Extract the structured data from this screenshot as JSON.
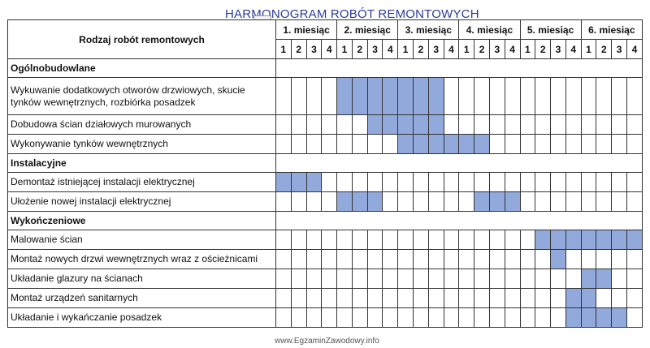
{
  "title": "HARMONOGRAM ROBÓT REMONTOWYCH",
  "info_badge": "INFO",
  "header": {
    "task_col": "Rodzaj robót remontowych",
    "months": [
      "1. miesiąc",
      "2. miesiąc",
      "3. miesiąc",
      "4. miesiąc",
      "5. miesiąc",
      "6. miesiąc"
    ],
    "weeks": [
      "1",
      "2",
      "3",
      "4"
    ]
  },
  "highlight_color": "#92a9dc",
  "sections": [
    {
      "name": "Ogólnobudowlane",
      "tasks": [
        {
          "label_lines": [
            "Wykuwanie dodatkowych otworów drzwiowych, skucie",
            "tynków wewnętrznych, rozbiórka posadzek"
          ],
          "weeks": [
            4,
            5,
            6,
            7,
            8,
            9,
            10
          ]
        },
        {
          "label_lines": [
            "Dobudowa ścian działowych murowanych"
          ],
          "weeks": [
            6,
            7,
            8,
            9,
            10
          ]
        },
        {
          "label_lines": [
            "Wykonywanie tynków wewnętrznych"
          ],
          "weeks": [
            8,
            9,
            10,
            11,
            12,
            13
          ]
        }
      ]
    },
    {
      "name": "Instalacyjne",
      "tasks": [
        {
          "label_lines": [
            "Demontaż istniejącej instalacji elektrycznej"
          ],
          "weeks": [
            0,
            1,
            2
          ]
        },
        {
          "label_lines": [
            "Ułożenie nowej instalacji elektrycznej"
          ],
          "weeks": [
            4,
            5,
            6,
            13,
            14,
            15
          ]
        }
      ]
    },
    {
      "name": "Wykończeniowe",
      "tasks": [
        {
          "label_lines": [
            "Malowanie ścian"
          ],
          "weeks": [
            17,
            18,
            19,
            20,
            21,
            22,
            23
          ]
        },
        {
          "label_lines": [
            "Montaż nowych drzwi wewnętrznych wraz z ościeżnicami"
          ],
          "weeks": [
            18
          ]
        },
        {
          "label_lines": [
            "Układanie glazury na ścianach"
          ],
          "weeks": [
            20,
            21
          ]
        },
        {
          "label_lines": [
            "Montaż urządzeń sanitarnych"
          ],
          "weeks": [
            19,
            20
          ]
        },
        {
          "label_lines": [
            "Układanie i wykańczanie posadzek"
          ],
          "weeks": [
            19,
            20,
            21,
            22
          ]
        }
      ]
    }
  ],
  "watermark": "www.EgzaminZawodowy.info"
}
